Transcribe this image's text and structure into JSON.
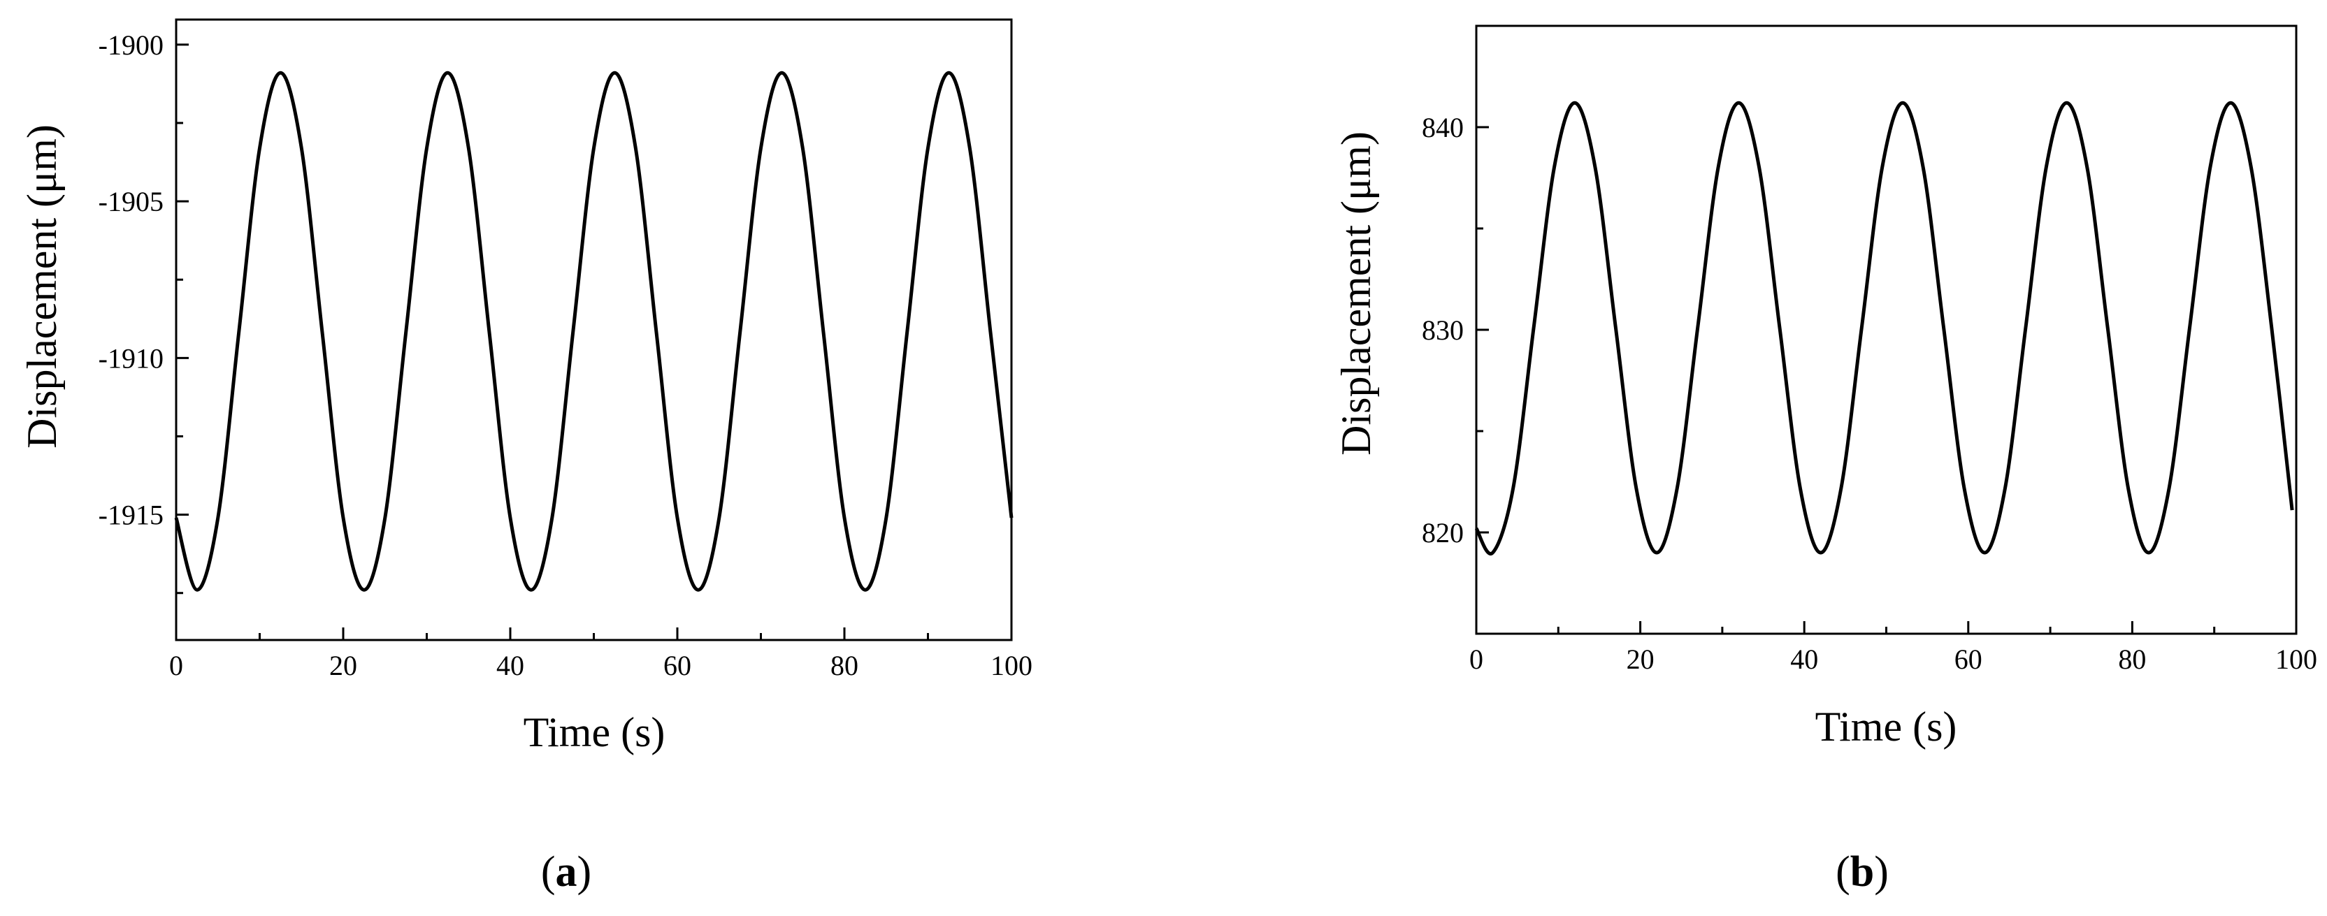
{
  "chart_data": [
    {
      "type": "line",
      "panel": "a",
      "xlabel": "Time (s)",
      "ylabel": "Displacement (μm)",
      "xlim": [
        0,
        100
      ],
      "ylim": [
        -1919,
        -1899.2
      ],
      "xticks": [
        0,
        20,
        40,
        60,
        80,
        100
      ],
      "xtick_labels": [
        "0",
        "20",
        "40",
        "60",
        "80",
        "100"
      ],
      "yticks": [
        -1900,
        -1905,
        -1910,
        -1915
      ],
      "ytick_labels": [
        "-1900",
        "-1905",
        "-1910",
        "-1915"
      ],
      "grid": false,
      "series": [
        {
          "color": "#000000",
          "period_s": 20,
          "x": [
            0,
            2.5,
            5,
            7.5,
            10,
            12.5,
            15,
            17.5,
            20,
            22.5,
            25,
            27.5,
            30,
            32.5,
            35,
            37.5,
            40,
            42.5,
            45,
            47.5,
            50,
            52.5,
            55,
            57.5,
            60,
            62.5,
            65,
            67.5,
            70,
            72.5,
            75,
            77.5,
            80,
            82.5,
            85,
            87.5,
            90,
            92.5,
            95,
            97.5,
            100
          ],
          "y": [
            -1915.1,
            -1917.4,
            -1915.1,
            -1909.2,
            -1903.3,
            -1900.9,
            -1903.3,
            -1909.2,
            -1915.1,
            -1917.4,
            -1915.1,
            -1909.2,
            -1903.3,
            -1900.9,
            -1903.3,
            -1909.2,
            -1915.1,
            -1917.4,
            -1915.1,
            -1909.2,
            -1903.3,
            -1900.9,
            -1903.3,
            -1909.2,
            -1915.1,
            -1917.4,
            -1915.1,
            -1909.2,
            -1903.3,
            -1900.9,
            -1903.3,
            -1909.2,
            -1915.1,
            -1917.4,
            -1915.1,
            -1909.2,
            -1903.3,
            -1900.9,
            -1903.3,
            -1909.2,
            -1915.1
          ]
        }
      ]
    },
    {
      "type": "line",
      "panel": "b",
      "xlabel": "Time (s)",
      "ylabel": "Displacement (μm)",
      "xlim": [
        0,
        100
      ],
      "ylim": [
        815,
        845
      ],
      "xticks": [
        0,
        20,
        40,
        60,
        80,
        100
      ],
      "xtick_labels": [
        "0",
        "20",
        "40",
        "60",
        "80",
        "100"
      ],
      "yticks": [
        820,
        830,
        840
      ],
      "ytick_labels": [
        "820",
        "830",
        "840"
      ],
      "grid": false,
      "series": [
        {
          "color": "#000000",
          "period_s": 20,
          "x": [
            0,
            2,
            4.5,
            7,
            9.5,
            12,
            14.5,
            17,
            19.5,
            22,
            24.5,
            27,
            29.5,
            32,
            34.5,
            37,
            39.5,
            42,
            44.5,
            47,
            49.5,
            52,
            54.5,
            57,
            59.5,
            62,
            64.5,
            67,
            69.5,
            72,
            74.5,
            77,
            79.5,
            82,
            84.5,
            87,
            89.5,
            92,
            94.5,
            97,
            99.5
          ],
          "y": [
            820.2,
            819,
            822.2,
            830.1,
            838,
            841.2,
            838,
            830.1,
            822.2,
            819,
            822.2,
            830.1,
            838,
            841.2,
            838,
            830.1,
            822.2,
            819,
            822.2,
            830.1,
            838,
            841.2,
            838,
            830.1,
            822.2,
            819,
            822.2,
            830.1,
            838,
            841.2,
            838,
            830.1,
            822.2,
            819,
            822.2,
            830.1,
            838,
            841.2,
            838,
            830.1,
            821.1
          ]
        }
      ]
    }
  ],
  "captions": {
    "a": {
      "open": "(",
      "letter": "a",
      "close": ")"
    },
    "b": {
      "open": "(",
      "letter": "b",
      "close": ")"
    }
  }
}
